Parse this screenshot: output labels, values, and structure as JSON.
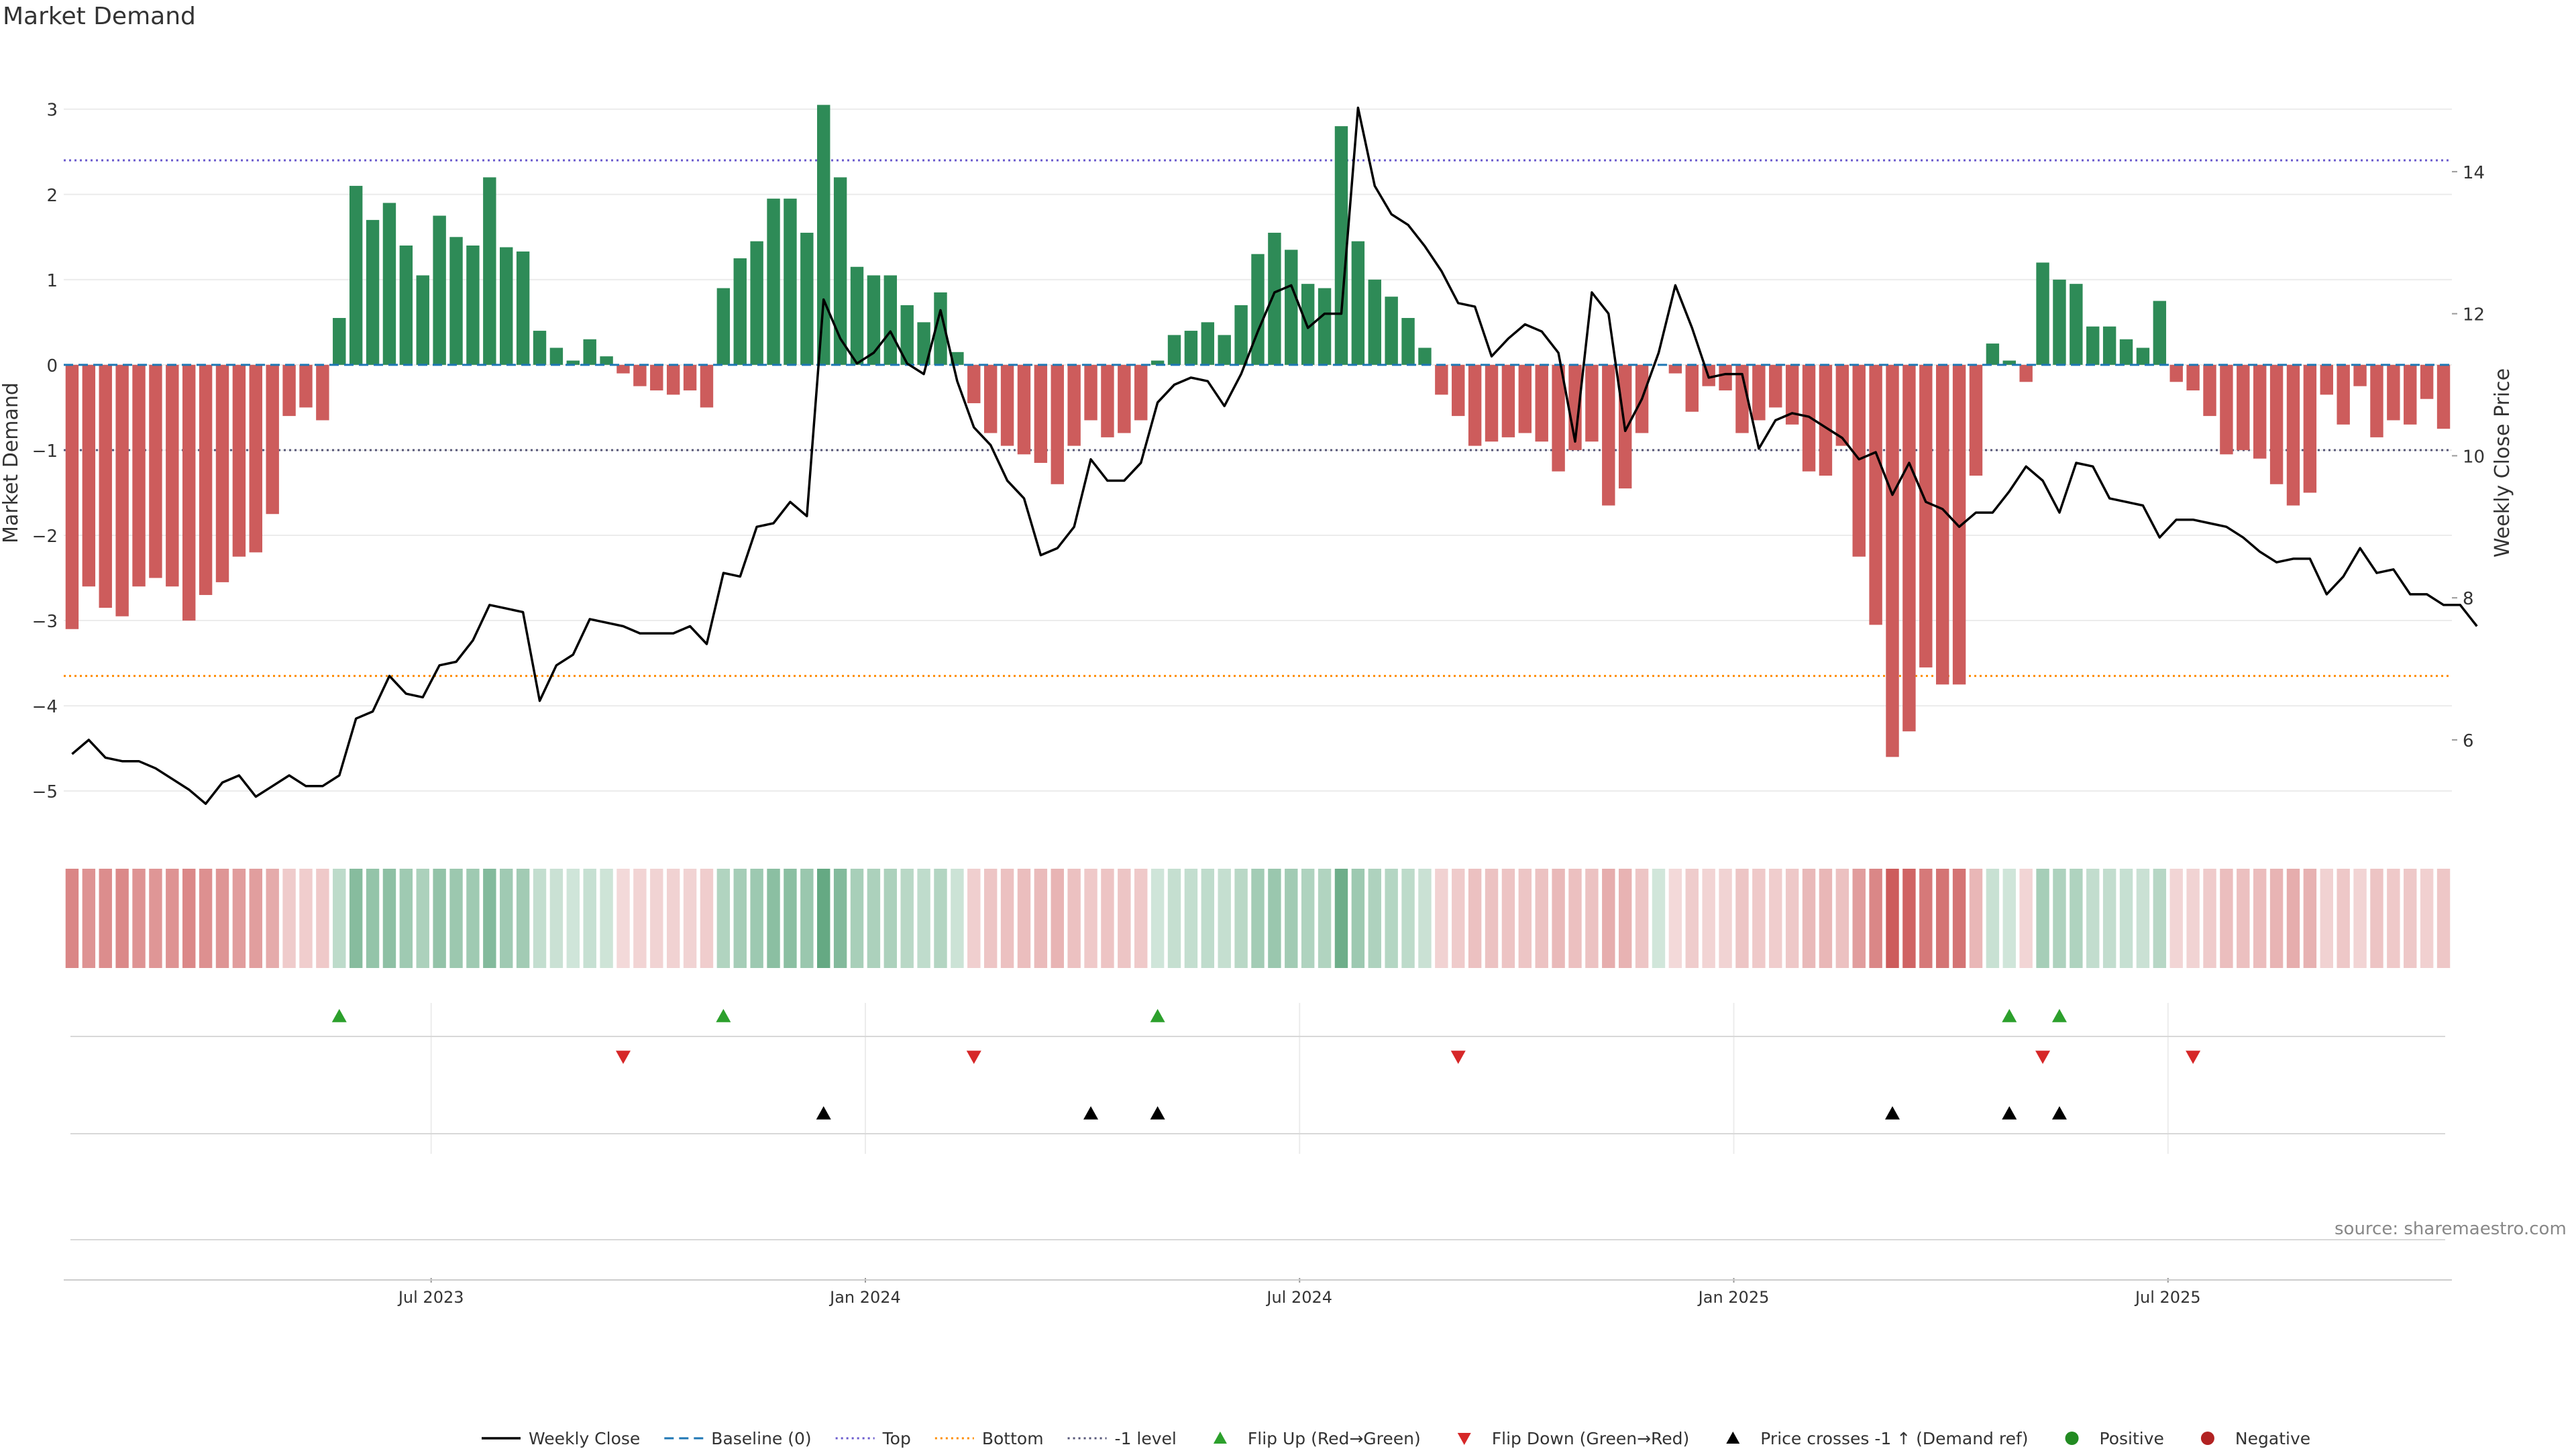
{
  "title": "Market Demand",
  "source": "source: sharemaestro.com",
  "colors": {
    "positive": "#2e8b57",
    "negative": "#cd5c5c",
    "price": "#000000",
    "baseline": "#1f77b4",
    "top": "#6a5acd",
    "bottom": "#ff8c00",
    "minus_one": "#555577",
    "flip_up": "#2ca02c",
    "flip_down": "#d62728",
    "cross": "#000000",
    "legend_positive": "#228b22",
    "legend_negative": "#b22222"
  },
  "chart_data": {
    "type": "bar",
    "ylabel": "Market Demand",
    "y2label": "Weekly Close Price",
    "ylim": [
      -5.4,
      3.1
    ],
    "y2lim": [
      4.8,
      15.0
    ],
    "yticks": [
      "3",
      "2",
      "1",
      "0",
      "−1",
      "−2",
      "−3",
      "−4",
      "−5"
    ],
    "y2ticks": [
      "14",
      "12",
      "10",
      "8",
      "6"
    ],
    "xtick_labels": [
      "Jul 2023",
      "Jan 2024",
      "Jul 2024",
      "Jan 2025",
      "Jul 2025"
    ],
    "xtick_index": [
      22,
      48,
      74,
      100,
      126
    ],
    "reference_lines": {
      "top": 2.4,
      "bottom": -3.65,
      "minus_one": -1.0,
      "baseline": 0
    },
    "demand": [
      -3.1,
      -2.6,
      -2.85,
      -2.95,
      -2.6,
      -2.5,
      -2.6,
      -3.0,
      -2.7,
      -2.55,
      -2.25,
      -2.2,
      -1.75,
      -0.6,
      -0.5,
      -0.65,
      0.55,
      2.1,
      1.7,
      1.9,
      1.4,
      1.05,
      1.75,
      1.5,
      1.4,
      2.2,
      1.38,
      1.33,
      0.4,
      0.2,
      0.05,
      0.3,
      0.1,
      -0.1,
      -0.25,
      -0.3,
      -0.35,
      -0.3,
      -0.5,
      0.9,
      1.25,
      1.45,
      1.95,
      1.95,
      1.55,
      3.05,
      2.2,
      1.15,
      1.05,
      1.05,
      0.7,
      0.5,
      0.85,
      0.15,
      -0.45,
      -0.8,
      -0.95,
      -1.05,
      -1.15,
      -1.4,
      -0.95,
      -0.65,
      -0.85,
      -0.8,
      -0.65,
      0.05,
      0.35,
      0.4,
      0.5,
      0.35,
      0.7,
      1.3,
      1.55,
      1.35,
      0.95,
      0.9,
      2.8,
      1.45,
      1.0,
      0.8,
      0.55,
      0.2,
      -0.35,
      -0.6,
      -0.95,
      -0.9,
      -0.85,
      -0.8,
      -0.9,
      -1.25,
      -1.0,
      -0.9,
      -1.65,
      -1.45,
      -0.8,
      0.0,
      -0.1,
      -0.55,
      -0.25,
      -0.3,
      -0.8,
      -0.65,
      -0.5,
      -0.7,
      -1.25,
      -1.3,
      -0.95,
      -2.25,
      -3.05,
      -4.6,
      -4.3,
      -3.55,
      -3.75,
      -3.75,
      -1.3,
      0.25,
      0.05,
      -0.2,
      1.2,
      1.0,
      0.95,
      0.45,
      0.45,
      0.3,
      0.2,
      0.75,
      -0.2,
      -0.3,
      -0.6,
      -1.05,
      -1.0,
      -1.1,
      -1.4,
      -1.65,
      -1.5,
      -0.35,
      -0.7,
      -0.25,
      -0.85,
      -0.65,
      -0.7,
      -0.4,
      -0.75
    ],
    "close": [
      5.8,
      6.0,
      5.75,
      5.7,
      5.7,
      5.6,
      5.45,
      5.3,
      5.1,
      5.4,
      5.5,
      5.2,
      5.35,
      5.5,
      5.35,
      5.35,
      5.5,
      6.3,
      6.4,
      6.9,
      6.65,
      6.6,
      7.05,
      7.1,
      7.4,
      7.9,
      7.85,
      7.8,
      6.55,
      7.05,
      7.2,
      7.7,
      7.65,
      7.6,
      7.5,
      7.5,
      7.5,
      7.6,
      7.35,
      8.35,
      8.3,
      9.0,
      9.05,
      9.35,
      9.15,
      12.2,
      11.65,
      11.3,
      11.45,
      11.75,
      11.3,
      11.15,
      12.05,
      11.05,
      10.4,
      10.15,
      9.65,
      9.4,
      8.6,
      8.7,
      9.0,
      9.95,
      9.65,
      9.65,
      9.9,
      10.75,
      11.0,
      11.1,
      11.05,
      10.7,
      11.15,
      11.75,
      12.3,
      12.4,
      11.8,
      12.0,
      12.0,
      14.9,
      13.8,
      13.4,
      13.25,
      12.95,
      12.6,
      12.15,
      12.1,
      11.4,
      11.65,
      11.85,
      11.75,
      11.45,
      10.2,
      12.3,
      12.0,
      10.35,
      10.8,
      11.45,
      12.4,
      11.8,
      11.1,
      11.15,
      11.15,
      10.1,
      10.5,
      10.6,
      10.55,
      10.4,
      10.25,
      9.95,
      10.05,
      9.45,
      9.9,
      9.35,
      9.25,
      9.0,
      9.2,
      9.2,
      9.5,
      9.85,
      9.65,
      9.2,
      9.9,
      9.85,
      9.4,
      9.35,
      9.3,
      8.85,
      9.1,
      9.1,
      9.05,
      9.0,
      8.85,
      8.65,
      8.5,
      8.55,
      8.55,
      8.05,
      8.3,
      8.7,
      8.35,
      8.4,
      8.05,
      8.05,
      7.9,
      7.9,
      7.6
    ],
    "flip_up_index": [
      16,
      39,
      65,
      116,
      119
    ],
    "flip_down_index": [
      33,
      54,
      83,
      118,
      127
    ],
    "cross_up_index": [
      45,
      61,
      65,
      109,
      116,
      119
    ]
  },
  "legend": [
    {
      "label": "Weekly Close",
      "kind": "line",
      "color": "#000000"
    },
    {
      "label": "Baseline (0)",
      "kind": "dash",
      "color": "#1f77b4"
    },
    {
      "label": "Top",
      "kind": "dot",
      "color": "#6a5acd"
    },
    {
      "label": "Bottom",
      "kind": "dot",
      "color": "#ff8c00"
    },
    {
      "label": "-1 level",
      "kind": "dot",
      "color": "#555577"
    },
    {
      "label": "Flip Up (Red→Green)",
      "kind": "tri-up",
      "color": "#2ca02c"
    },
    {
      "label": "Flip Down (Green→Red)",
      "kind": "tri-down",
      "color": "#d62728"
    },
    {
      "label": "Price crosses -1 ↑ (Demand ref)",
      "kind": "tri-up",
      "color": "#000000"
    },
    {
      "label": "Positive",
      "kind": "circle",
      "color": "#228b22"
    },
    {
      "label": "Negative",
      "kind": "circle",
      "color": "#b22222"
    }
  ]
}
